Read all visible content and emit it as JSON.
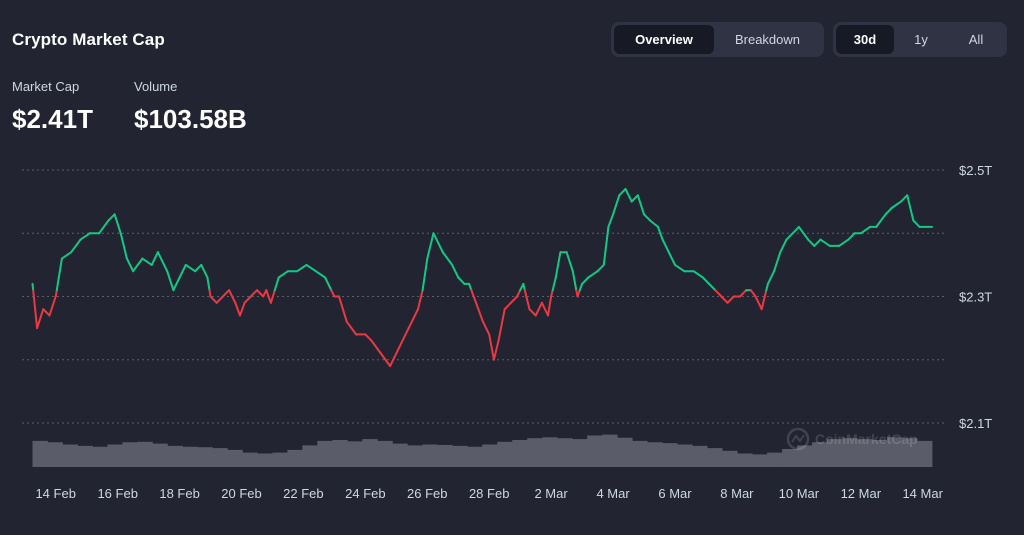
{
  "header": {
    "title": "Crypto Market Cap",
    "market_cap_label": "Market Cap",
    "market_cap_value": "$2.41T",
    "volume_label": "Volume",
    "volume_value": "$103.58B"
  },
  "view_toggle": {
    "options": [
      "Overview",
      "Breakdown"
    ],
    "selected": "Overview"
  },
  "range_toggle": {
    "options": [
      "30d",
      "1y",
      "All"
    ],
    "selected": "30d"
  },
  "watermark": "CoinMarketCap",
  "colors": {
    "up": "#16c784",
    "down": "#ea3943",
    "volume": "#5a5d69",
    "grid": "#5b5f6e",
    "background": "#222531"
  },
  "chart_data": {
    "type": "line",
    "title": "",
    "xlabel": "",
    "ylabel": "",
    "baseline": 2.31,
    "ylim": [
      2.06,
      2.54
    ],
    "y_ticks": [
      {
        "value": 2.5,
        "label": "$2.5T"
      },
      {
        "value": 2.3,
        "label": "$2.3T"
      },
      {
        "value": 2.1,
        "label": "$2.1T"
      }
    ],
    "x_ticks": [
      {
        "day": 1,
        "label": "14 Feb"
      },
      {
        "day": 3,
        "label": "16 Feb"
      },
      {
        "day": 5,
        "label": "18 Feb"
      },
      {
        "day": 7,
        "label": "20 Feb"
      },
      {
        "day": 9,
        "label": "22 Feb"
      },
      {
        "day": 11,
        "label": "24 Feb"
      },
      {
        "day": 13,
        "label": "26 Feb"
      },
      {
        "day": 15,
        "label": "28 Feb"
      },
      {
        "day": 17,
        "label": "2 Mar"
      },
      {
        "day": 19,
        "label": "4 Mar"
      },
      {
        "day": 21,
        "label": "6 Mar"
      },
      {
        "day": 23,
        "label": "8 Mar"
      },
      {
        "day": 25,
        "label": "10 Mar"
      },
      {
        "day": 27,
        "label": "12 Mar"
      },
      {
        "day": 29,
        "label": "14 Mar"
      }
    ],
    "series": [
      {
        "points": [
          [
            0.25,
            2.32
          ],
          [
            0.4,
            2.25
          ],
          [
            0.6,
            2.28
          ],
          [
            0.8,
            2.27
          ],
          [
            1.0,
            2.3
          ],
          [
            1.1,
            2.33
          ],
          [
            1.2,
            2.36
          ],
          [
            1.5,
            2.37
          ],
          [
            1.8,
            2.39
          ],
          [
            2.1,
            2.4
          ],
          [
            2.4,
            2.4
          ],
          [
            2.7,
            2.42
          ],
          [
            2.9,
            2.43
          ],
          [
            3.1,
            2.4
          ],
          [
            3.3,
            2.36
          ],
          [
            3.5,
            2.34
          ],
          [
            3.8,
            2.36
          ],
          [
            4.1,
            2.35
          ],
          [
            4.3,
            2.37
          ],
          [
            4.6,
            2.34
          ],
          [
            4.8,
            2.31
          ],
          [
            5.0,
            2.33
          ],
          [
            5.2,
            2.35
          ],
          [
            5.5,
            2.34
          ],
          [
            5.7,
            2.35
          ],
          [
            5.9,
            2.33
          ],
          [
            6.0,
            2.3
          ],
          [
            6.2,
            2.29
          ],
          [
            6.4,
            2.3
          ],
          [
            6.6,
            2.31
          ],
          [
            6.8,
            2.29
          ],
          [
            6.95,
            2.27
          ],
          [
            7.1,
            2.29
          ],
          [
            7.3,
            2.3
          ],
          [
            7.5,
            2.31
          ],
          [
            7.7,
            2.3
          ],
          [
            7.8,
            2.31
          ],
          [
            7.95,
            2.29
          ],
          [
            8.2,
            2.33
          ],
          [
            8.5,
            2.34
          ],
          [
            8.8,
            2.34
          ],
          [
            9.1,
            2.35
          ],
          [
            9.4,
            2.34
          ],
          [
            9.7,
            2.33
          ],
          [
            10.0,
            2.3
          ],
          [
            10.15,
            2.3
          ],
          [
            10.4,
            2.26
          ],
          [
            10.7,
            2.24
          ],
          [
            11.0,
            2.24
          ],
          [
            11.2,
            2.23
          ],
          [
            11.5,
            2.21
          ],
          [
            11.8,
            2.19
          ],
          [
            12.1,
            2.22
          ],
          [
            12.4,
            2.25
          ],
          [
            12.7,
            2.28
          ],
          [
            12.85,
            2.31
          ],
          [
            13.0,
            2.36
          ],
          [
            13.2,
            2.4
          ],
          [
            13.5,
            2.37
          ],
          [
            13.8,
            2.35
          ],
          [
            14.0,
            2.33
          ],
          [
            14.2,
            2.32
          ],
          [
            14.35,
            2.32
          ],
          [
            14.5,
            2.3
          ],
          [
            14.8,
            2.26
          ],
          [
            15.0,
            2.24
          ],
          [
            15.15,
            2.2
          ],
          [
            15.3,
            2.23
          ],
          [
            15.5,
            2.28
          ],
          [
            15.7,
            2.29
          ],
          [
            15.9,
            2.3
          ],
          [
            16.1,
            2.32
          ],
          [
            16.3,
            2.28
          ],
          [
            16.5,
            2.27
          ],
          [
            16.7,
            2.29
          ],
          [
            16.9,
            2.27
          ],
          [
            17.0,
            2.3
          ],
          [
            17.15,
            2.33
          ],
          [
            17.3,
            2.37
          ],
          [
            17.5,
            2.37
          ],
          [
            17.7,
            2.34
          ],
          [
            17.85,
            2.3
          ],
          [
            18.0,
            2.32
          ],
          [
            18.2,
            2.33
          ],
          [
            18.5,
            2.34
          ],
          [
            18.7,
            2.35
          ],
          [
            18.85,
            2.41
          ],
          [
            19.0,
            2.43
          ],
          [
            19.2,
            2.46
          ],
          [
            19.4,
            2.47
          ],
          [
            19.6,
            2.45
          ],
          [
            19.8,
            2.46
          ],
          [
            20.0,
            2.43
          ],
          [
            20.2,
            2.42
          ],
          [
            20.45,
            2.41
          ],
          [
            20.6,
            2.39
          ],
          [
            20.8,
            2.37
          ],
          [
            21.0,
            2.35
          ],
          [
            21.3,
            2.34
          ],
          [
            21.6,
            2.34
          ],
          [
            21.9,
            2.33
          ],
          [
            22.1,
            2.32
          ],
          [
            22.3,
            2.31
          ],
          [
            22.5,
            2.3
          ],
          [
            22.7,
            2.29
          ],
          [
            22.9,
            2.3
          ],
          [
            23.1,
            2.3
          ],
          [
            23.3,
            2.31
          ],
          [
            23.45,
            2.31
          ],
          [
            23.6,
            2.3
          ],
          [
            23.8,
            2.28
          ],
          [
            24.0,
            2.32
          ],
          [
            24.2,
            2.34
          ],
          [
            24.4,
            2.37
          ],
          [
            24.6,
            2.39
          ],
          [
            24.8,
            2.4
          ],
          [
            25.0,
            2.41
          ],
          [
            25.3,
            2.39
          ],
          [
            25.5,
            2.38
          ],
          [
            25.7,
            2.39
          ],
          [
            26.0,
            2.38
          ],
          [
            26.3,
            2.38
          ],
          [
            26.6,
            2.39
          ],
          [
            26.8,
            2.4
          ],
          [
            27.0,
            2.4
          ],
          [
            27.3,
            2.41
          ],
          [
            27.5,
            2.41
          ],
          [
            27.8,
            2.43
          ],
          [
            28.0,
            2.44
          ],
          [
            28.3,
            2.45
          ],
          [
            28.5,
            2.46
          ],
          [
            28.7,
            2.42
          ],
          [
            28.9,
            2.41
          ],
          [
            29.1,
            2.41
          ],
          [
            29.3,
            2.41
          ]
        ]
      }
    ],
    "volume": {
      "values": [
        0.58,
        0.55,
        0.5,
        0.47,
        0.45,
        0.5,
        0.55,
        0.56,
        0.52,
        0.47,
        0.45,
        0.44,
        0.42,
        0.38,
        0.32,
        0.3,
        0.32,
        0.38,
        0.48,
        0.58,
        0.6,
        0.57,
        0.62,
        0.58,
        0.52,
        0.48,
        0.5,
        0.49,
        0.47,
        0.45,
        0.5,
        0.56,
        0.6,
        0.64,
        0.66,
        0.64,
        0.62,
        0.7,
        0.72,
        0.65,
        0.58,
        0.55,
        0.53,
        0.5,
        0.47,
        0.42,
        0.36,
        0.3,
        0.28,
        0.32,
        0.4,
        0.48,
        0.55,
        0.62,
        0.64,
        0.62,
        0.6,
        0.66,
        0.64,
        0.58
      ]
    }
  }
}
